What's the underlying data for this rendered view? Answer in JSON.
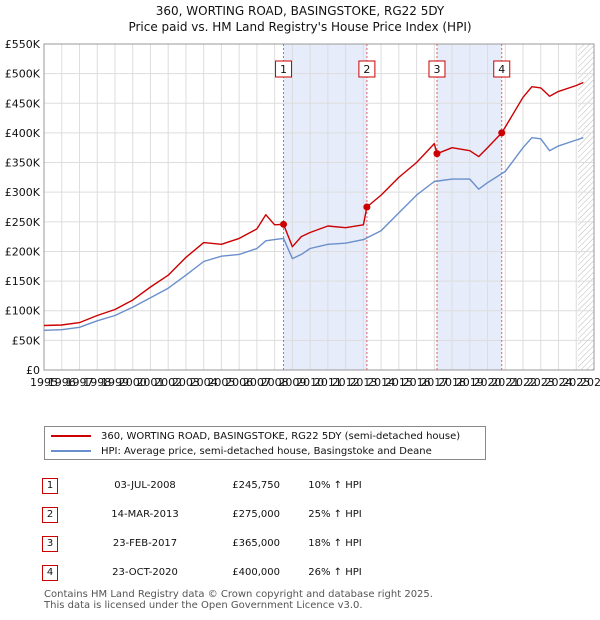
{
  "title": {
    "line1": "360, WORTING ROAD, BASINGSTOKE, RG22 5DY",
    "line2": "Price paid vs. HM Land Registry's House Price Index (HPI)"
  },
  "colors": {
    "property": "#cc0000",
    "hpi": "#6a8fcc",
    "shade": "#e6ecfa",
    "grid": "#dddddd",
    "marker_line": "#e06060"
  },
  "chart_data": {
    "type": "line",
    "title": "360, WORTING ROAD, BASINGSTOKE, RG22 5DY — Price paid vs. HM Land Registry's House Price Index (HPI)",
    "xlim": [
      1995,
      2026
    ],
    "ylim": [
      0,
      550000
    ],
    "x_ticks": [
      "1995",
      "1996",
      "1997",
      "1998",
      "1999",
      "2000",
      "2001",
      "2002",
      "2003",
      "2004",
      "2005",
      "2006",
      "2007",
      "2008",
      "2009",
      "2010",
      "2011",
      "2012",
      "2013",
      "2014",
      "2015",
      "2016",
      "2017",
      "2018",
      "2019",
      "2020",
      "2021",
      "2022",
      "2023",
      "2024",
      "2025",
      "2026"
    ],
    "y_ticks": [
      {
        "value": 0,
        "label": "£0"
      },
      {
        "value": 50000,
        "label": "£50K"
      },
      {
        "value": 100000,
        "label": "£100K"
      },
      {
        "value": 150000,
        "label": "£150K"
      },
      {
        "value": 200000,
        "label": "£200K"
      },
      {
        "value": 250000,
        "label": "£250K"
      },
      {
        "value": 300000,
        "label": "£300K"
      },
      {
        "value": 350000,
        "label": "£350K"
      },
      {
        "value": 400000,
        "label": "£400K"
      },
      {
        "value": 450000,
        "label": "£450K"
      },
      {
        "value": 500000,
        "label": "£500K"
      },
      {
        "value": 550000,
        "label": "£550K"
      }
    ],
    "shaded_ranges": [
      [
        2008.5,
        2013.2
      ],
      [
        2017.15,
        2020.8
      ]
    ],
    "hatched_from": 2025.1,
    "series": [
      {
        "name": "360, WORTING ROAD, BASINGSTOKE, RG22 5DY (semi-detached house)",
        "x": [
          1995,
          1996,
          1997,
          1998,
          1999,
          2000,
          2001,
          2002,
          2003,
          2004,
          2005,
          2006,
          2007,
          2007.5,
          2008,
          2008.5,
          2009,
          2009.5,
          2010,
          2011,
          2012,
          2013,
          2013.2,
          2014,
          2015,
          2016,
          2017,
          2017.15,
          2018,
          2019,
          2019.5,
          2020,
          2020.8,
          2021,
          2022,
          2022.5,
          2023,
          2023.5,
          2024,
          2025,
          2025.4
        ],
        "values": [
          75000,
          76000,
          80000,
          92000,
          102000,
          118000,
          140000,
          160000,
          190000,
          215000,
          212000,
          222000,
          238000,
          262000,
          245000,
          245750,
          208000,
          225000,
          232000,
          243000,
          240000,
          245000,
          275000,
          295000,
          325000,
          350000,
          382000,
          365000,
          375000,
          370000,
          360000,
          375000,
          400000,
          410000,
          460000,
          478000,
          476000,
          462000,
          470000,
          480000,
          485000
        ]
      },
      {
        "name": "HPI: Average price, semi-detached house, Basingstoke and Deane",
        "x": [
          1995,
          1996,
          1997,
          1998,
          1999,
          2000,
          2001,
          2002,
          2003,
          2004,
          2005,
          2006,
          2007,
          2007.5,
          2008,
          2008.5,
          2009,
          2009.5,
          2010,
          2011,
          2012,
          2013,
          2014,
          2015,
          2016,
          2017,
          2018,
          2019,
          2019.5,
          2020,
          2021,
          2022,
          2022.5,
          2023,
          2023.5,
          2024,
          2025,
          2025.4
        ],
        "values": [
          67000,
          68000,
          72000,
          83000,
          92000,
          106000,
          122000,
          138000,
          160000,
          183000,
          192000,
          195000,
          205000,
          218000,
          220000,
          222000,
          188000,
          195000,
          205000,
          212000,
          214000,
          220000,
          235000,
          265000,
          295000,
          318000,
          322000,
          322000,
          305000,
          316000,
          335000,
          375000,
          392000,
          390000,
          370000,
          378000,
          388000,
          392000
        ]
      }
    ],
    "sales": [
      {
        "number": "1",
        "x": 2008.5,
        "value": 245750
      },
      {
        "number": "2",
        "x": 2013.2,
        "value": 275000
      },
      {
        "number": "3",
        "x": 2017.15,
        "value": 365000
      },
      {
        "number": "4",
        "x": 2020.8,
        "value": 400000
      }
    ]
  },
  "legend": {
    "property_label": "360, WORTING ROAD, BASINGSTOKE, RG22 5DY (semi-detached house)",
    "hpi_label": "HPI: Average price, semi-detached house, Basingstoke and Deane"
  },
  "table": [
    {
      "number": "1",
      "date": "03-JUL-2008",
      "price": "£245,750",
      "hpi": "10% ↑ HPI"
    },
    {
      "number": "2",
      "date": "14-MAR-2013",
      "price": "£275,000",
      "hpi": "25% ↑ HPI"
    },
    {
      "number": "3",
      "date": "23-FEB-2017",
      "price": "£365,000",
      "hpi": "18% ↑ HPI"
    },
    {
      "number": "4",
      "date": "23-OCT-2020",
      "price": "£400,000",
      "hpi": "26% ↑ HPI"
    }
  ],
  "footer": {
    "line1": "Contains HM Land Registry data © Crown copyright and database right 2025.",
    "line2": "This data is licensed under the Open Government Licence v3.0."
  }
}
